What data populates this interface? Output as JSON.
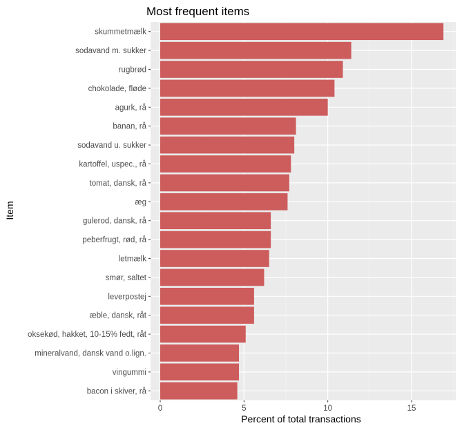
{
  "chart_data": {
    "type": "bar",
    "orientation": "horizontal",
    "title": "Most frequent items",
    "xlabel": "Percent of total transactions",
    "ylabel": "Item",
    "xlim": [
      0,
      17.5
    ],
    "xticks": [
      "0",
      "5",
      "10",
      "15"
    ],
    "xtick_values": [
      0,
      5,
      10,
      15
    ],
    "grid": true,
    "bar_color": "#cd5c5c",
    "panel_color": "#ebebeb",
    "categories": [
      "skummetmælk",
      "sodavand m. sukker",
      "rugbrød",
      "chokolade, fløde",
      "agurk, rå",
      "banan, rå",
      "sodavand u. sukker",
      "kartoffel, uspec., rå",
      "tomat, dansk, rå",
      "æg",
      "gulerod, dansk, rå",
      "peberfrugt, rød, rå",
      "letmælk",
      "smør, saltet",
      "leverpostej",
      "æble, dansk, råt",
      "oksekød, hakket, 10-15% fedt, råt",
      "mineralvand, dansk vand o.lign.",
      "vingummi",
      "bacon i skiver, rå"
    ],
    "values": [
      16.9,
      11.4,
      10.9,
      10.4,
      10.0,
      8.1,
      8.0,
      7.8,
      7.7,
      7.6,
      6.6,
      6.6,
      6.5,
      6.2,
      5.6,
      5.6,
      5.1,
      4.7,
      4.7,
      4.6
    ]
  }
}
